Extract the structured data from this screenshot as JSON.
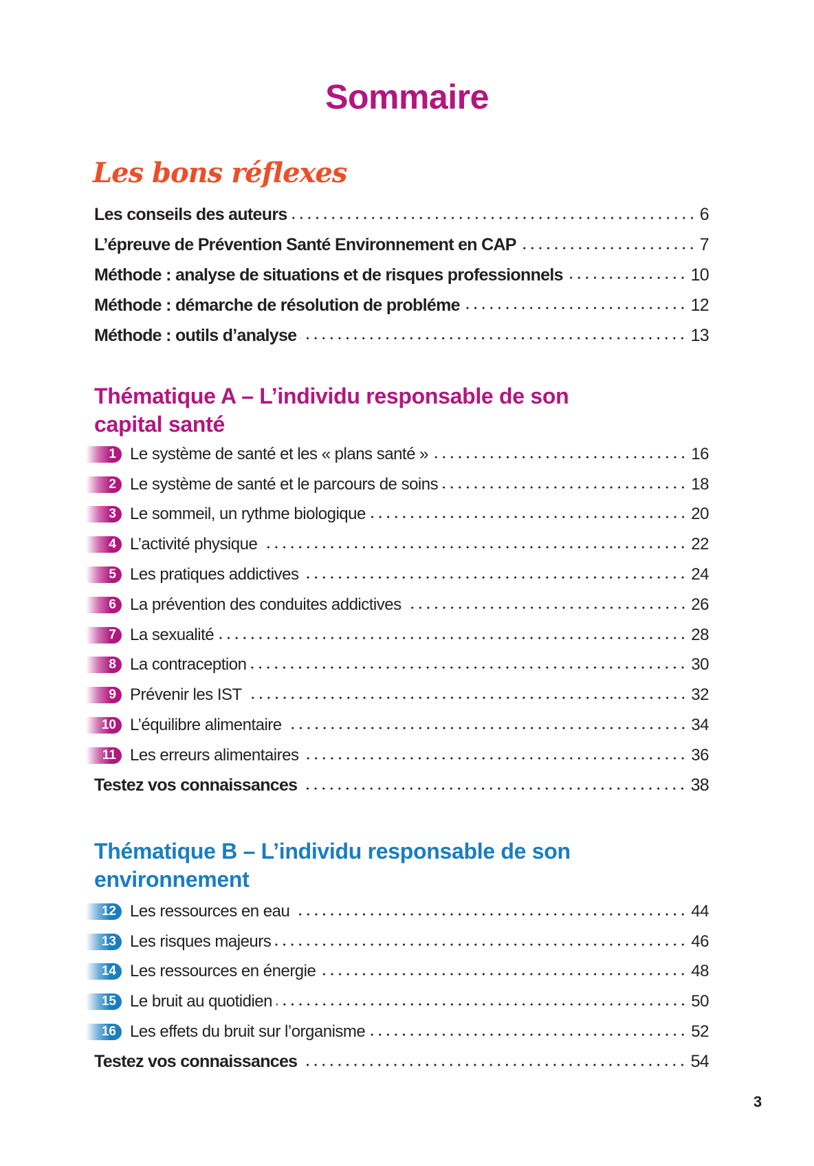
{
  "title": "Sommaire",
  "reflexes": {
    "heading": "Les bons réflexes",
    "items": [
      {
        "label": "Les conseils des auteurs",
        "page": "6"
      },
      {
        "label": "L’épreuve de Prévention Santé Environnement en CAP",
        "page": "7"
      },
      {
        "label": "Méthode : analyse de situations et de risques professionnels",
        "page": "10"
      },
      {
        "label": "Méthode : démarche de résolution de probléme",
        "page": "12"
      },
      {
        "label": "Méthode : outils d’analyse",
        "page": "13"
      }
    ]
  },
  "thematique_a": {
    "heading_line1": "Thématique A – L’individu responsable de son",
    "heading_line2": "capital santé",
    "color": "#b3167f",
    "items": [
      {
        "num": "1",
        "label": "Le système de santé et les « plans santé »",
        "page": "16"
      },
      {
        "num": "2",
        "label": "Le système de santé et le parcours de soins",
        "page": "18"
      },
      {
        "num": "3",
        "label": "Le sommeil, un rythme biologique",
        "page": "20"
      },
      {
        "num": "4",
        "label": "L’activité physique",
        "page": "22"
      },
      {
        "num": "5",
        "label": "Les pratiques addictives",
        "page": "24"
      },
      {
        "num": "6",
        "label": "La prévention des conduites addictives",
        "page": "26"
      },
      {
        "num": "7",
        "label": "La sexualité",
        "page": "28"
      },
      {
        "num": "8",
        "label": "La contraception",
        "page": "30"
      },
      {
        "num": "9",
        "label": "Prévenir les IST",
        "page": "32"
      },
      {
        "num": "10",
        "label": "L’équilibre alimentaire",
        "page": "34"
      },
      {
        "num": "11",
        "label": "Les erreurs alimentaires",
        "page": "36"
      }
    ],
    "test": {
      "label": "Testez vos connaissances",
      "page": "38"
    }
  },
  "thematique_b": {
    "heading_line1": "Thématique B – L’individu responsable de son",
    "heading_line2": "environnement",
    "color": "#1a7dc0",
    "items": [
      {
        "num": "12",
        "label": "Les ressources en eau",
        "page": "44"
      },
      {
        "num": "13",
        "label": "Les risques majeurs",
        "page": "46"
      },
      {
        "num": "14",
        "label": "Les ressources en énergie",
        "page": "48"
      },
      {
        "num": "15",
        "label": "Le bruit au quotidien",
        "page": "50"
      },
      {
        "num": "16",
        "label": "Les effets du bruit sur l’organisme",
        "page": "52"
      }
    ],
    "test": {
      "label": "Testez vos connaissances",
      "page": "54"
    }
  },
  "page_number": "3"
}
